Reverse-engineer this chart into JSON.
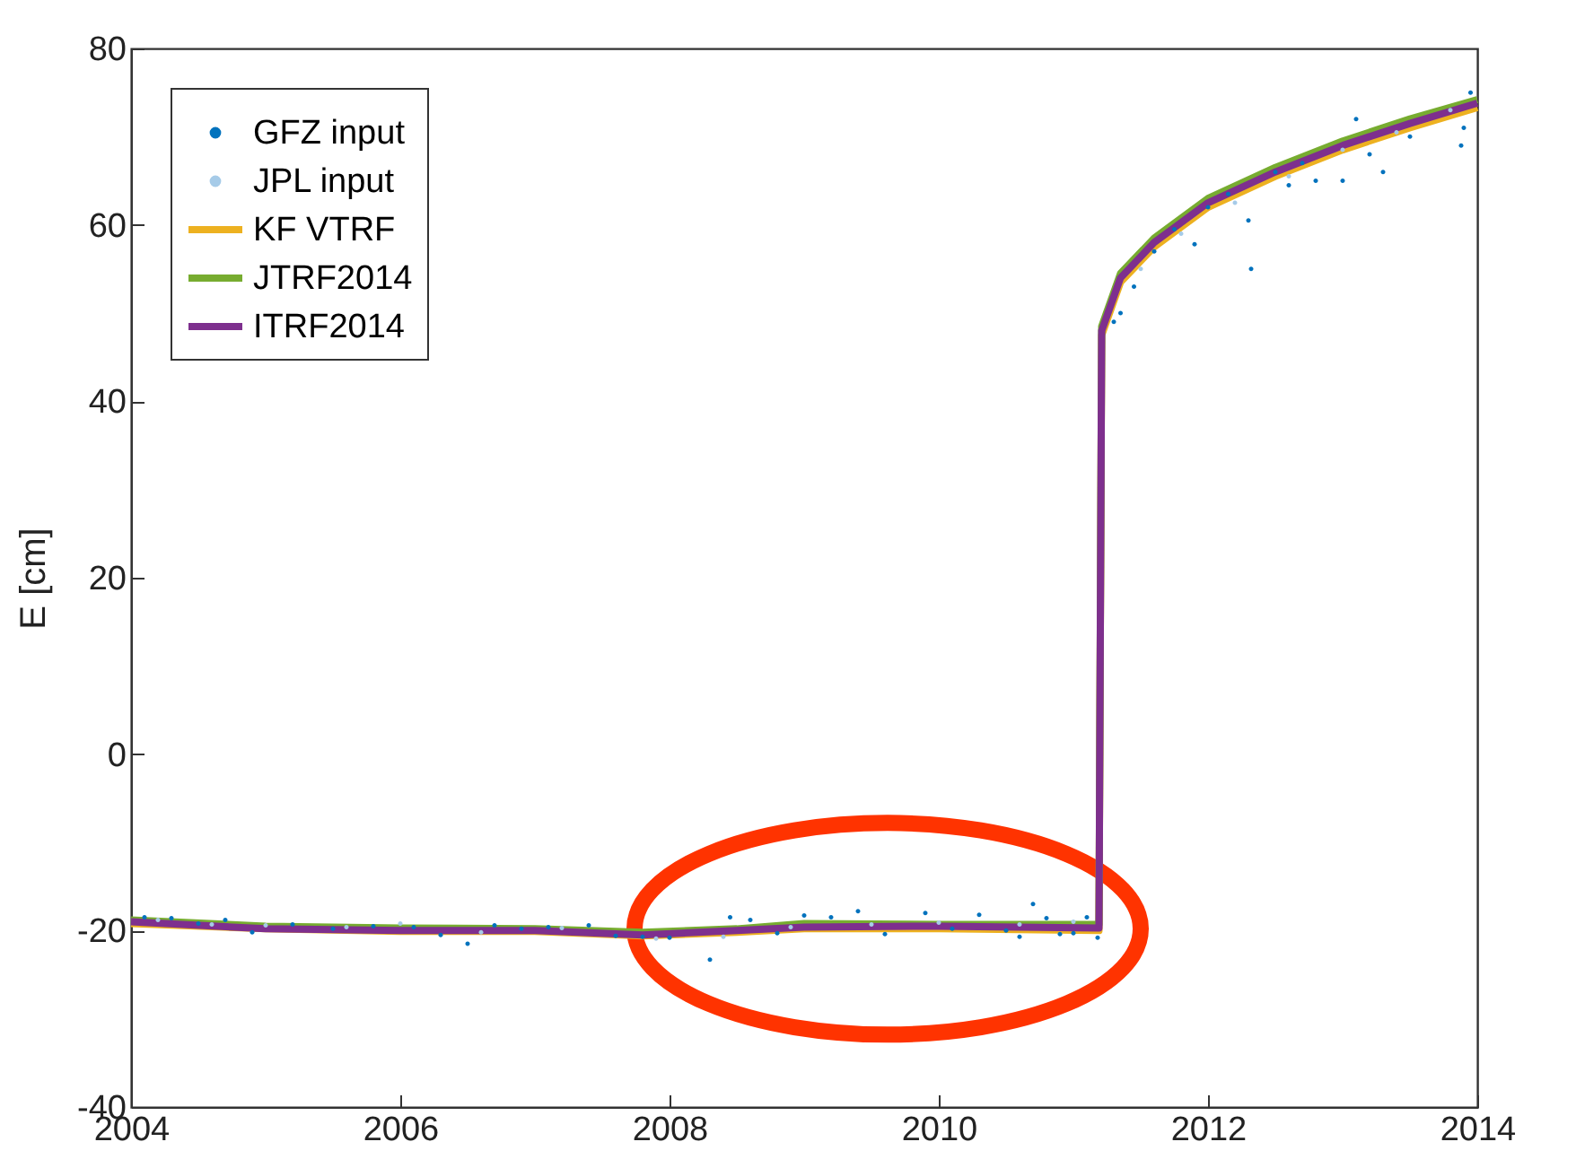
{
  "chart_data": {
    "type": "line",
    "ylabel": "E [cm]",
    "xlim": [
      2004,
      2014
    ],
    "xticks": [
      2004,
      2006,
      2008,
      2010,
      2012,
      2014
    ],
    "ylim": [
      -40,
      80
    ],
    "yticks": [
      -40,
      -20,
      0,
      20,
      40,
      60,
      80
    ],
    "grid": false,
    "legend": "top left",
    "series": [
      {
        "name": "GFZ input",
        "type": "scatter",
        "color": "#0072bd",
        "x": [
          2004.1,
          2004.3,
          2004.5,
          2004.7,
          2004.9,
          2005.2,
          2005.5,
          2005.8,
          2006.1,
          2006.3,
          2006.5,
          2006.7,
          2006.9,
          2007.1,
          2007.4,
          2007.6,
          2007.8,
          2008.0,
          2008.3,
          2008.45,
          2008.6,
          2008.8,
          2009.0,
          2009.2,
          2009.4,
          2009.6,
          2009.9,
          2010.1,
          2010.3,
          2010.5,
          2010.6,
          2010.7,
          2010.8,
          2010.9,
          2011.0,
          2011.1,
          2011.18,
          2011.3,
          2011.35,
          2011.45,
          2011.6,
          2011.75,
          2011.9,
          2012.0,
          2012.15,
          2012.3,
          2012.32,
          2012.5,
          2012.6,
          2012.7,
          2012.8,
          2013.0,
          2013.1,
          2013.2,
          2013.3,
          2013.5,
          2013.88,
          2013.9,
          2013.95
        ],
        "values": [
          -18.5,
          -18.6,
          -19.2,
          -18.8,
          -20.2,
          -19.3,
          -19.8,
          -19.5,
          -19.6,
          -20.5,
          -21.5,
          -19.4,
          -19.8,
          -19.6,
          -19.4,
          -20.6,
          -20.7,
          -20.8,
          -23.3,
          -18.5,
          -18.8,
          -20.3,
          -18.3,
          -18.5,
          -17.8,
          -20.4,
          -18,
          -19.8,
          -18.2,
          -20,
          -20.7,
          -17,
          -18.6,
          -20.4,
          -20.3,
          -18.5,
          -20.8,
          49,
          50,
          53,
          57,
          59.5,
          57.8,
          62,
          63.5,
          60.5,
          55,
          66,
          64.5,
          67,
          65,
          65,
          72,
          68,
          66,
          70,
          69,
          71,
          75
        ]
      },
      {
        "name": "JPL input",
        "type": "scatter",
        "color": "#a6cbe8",
        "x": [
          2004.2,
          2004.6,
          2005.0,
          2005.6,
          2006.0,
          2006.6,
          2007.2,
          2007.9,
          2008.4,
          2008.9,
          2009.5,
          2010.0,
          2010.6,
          2011.0,
          2011.5,
          2011.8,
          2012.2,
          2012.6,
          2013.0,
          2013.4,
          2013.8
        ],
        "values": [
          -18.8,
          -19.3,
          -19.4,
          -19.6,
          -19.2,
          -20.2,
          -19.7,
          -20.9,
          -20.7,
          -19.6,
          -19.3,
          -19.1,
          -19.3,
          -19,
          55,
          59,
          62.5,
          65.5,
          68.5,
          70.5,
          73
        ]
      },
      {
        "name": "KF VTRF",
        "color": "#edb120",
        "x": [
          2004,
          2005,
          2006,
          2007,
          2007.8,
          2008.5,
          2009,
          2010,
          2011.19,
          2011.21,
          2011.35,
          2011.6,
          2012,
          2012.5,
          2013,
          2013.5,
          2014
        ],
        "values": [
          -19.2,
          -19.8,
          -20.1,
          -20.1,
          -20.6,
          -20.2,
          -19.8,
          -19.8,
          -20,
          47.5,
          53.5,
          57.5,
          62,
          65.5,
          68.5,
          71,
          73.3
        ]
      },
      {
        "name": "JTRF2014",
        "color": "#77ac30",
        "x": [
          2004,
          2005,
          2006,
          2007,
          2007.8,
          2008.5,
          2009,
          2010,
          2011.19,
          2011.21,
          2011.35,
          2011.6,
          2012,
          2012.5,
          2013,
          2013.5,
          2014
        ],
        "values": [
          -18.8,
          -19.5,
          -19.7,
          -19.8,
          -20.2,
          -19.8,
          -19.2,
          -19.3,
          -19.3,
          48.5,
          54.5,
          58.5,
          63,
          66.5,
          69.5,
          72,
          74.2
        ]
      },
      {
        "name": "ITRF2014",
        "color": "#7e2f8e",
        "x": [
          2004,
          2005,
          2006,
          2007,
          2007.8,
          2008.5,
          2009,
          2010,
          2011.19,
          2011.21,
          2011.35,
          2011.6,
          2012,
          2012.5,
          2013,
          2013.5,
          2014
        ],
        "values": [
          -19,
          -19.8,
          -20,
          -20,
          -20.5,
          -20,
          -19.6,
          -19.5,
          -19.7,
          48,
          54,
          58,
          62.5,
          66,
          69,
          71.5,
          73.8
        ]
      }
    ]
  }
}
